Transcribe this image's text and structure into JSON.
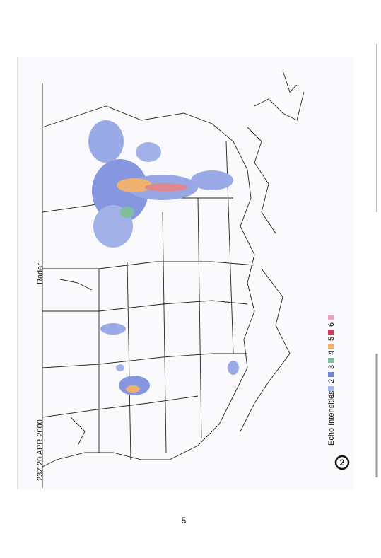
{
  "map": {
    "title": "Radar",
    "timestamp": "23Z 20 APR 2000"
  },
  "legend": {
    "label": "Echo Intensities:",
    "levels": [
      "1",
      "2",
      "3",
      "4",
      "5",
      "6"
    ],
    "badge": "2"
  },
  "footer": {
    "page_number": "5"
  }
}
